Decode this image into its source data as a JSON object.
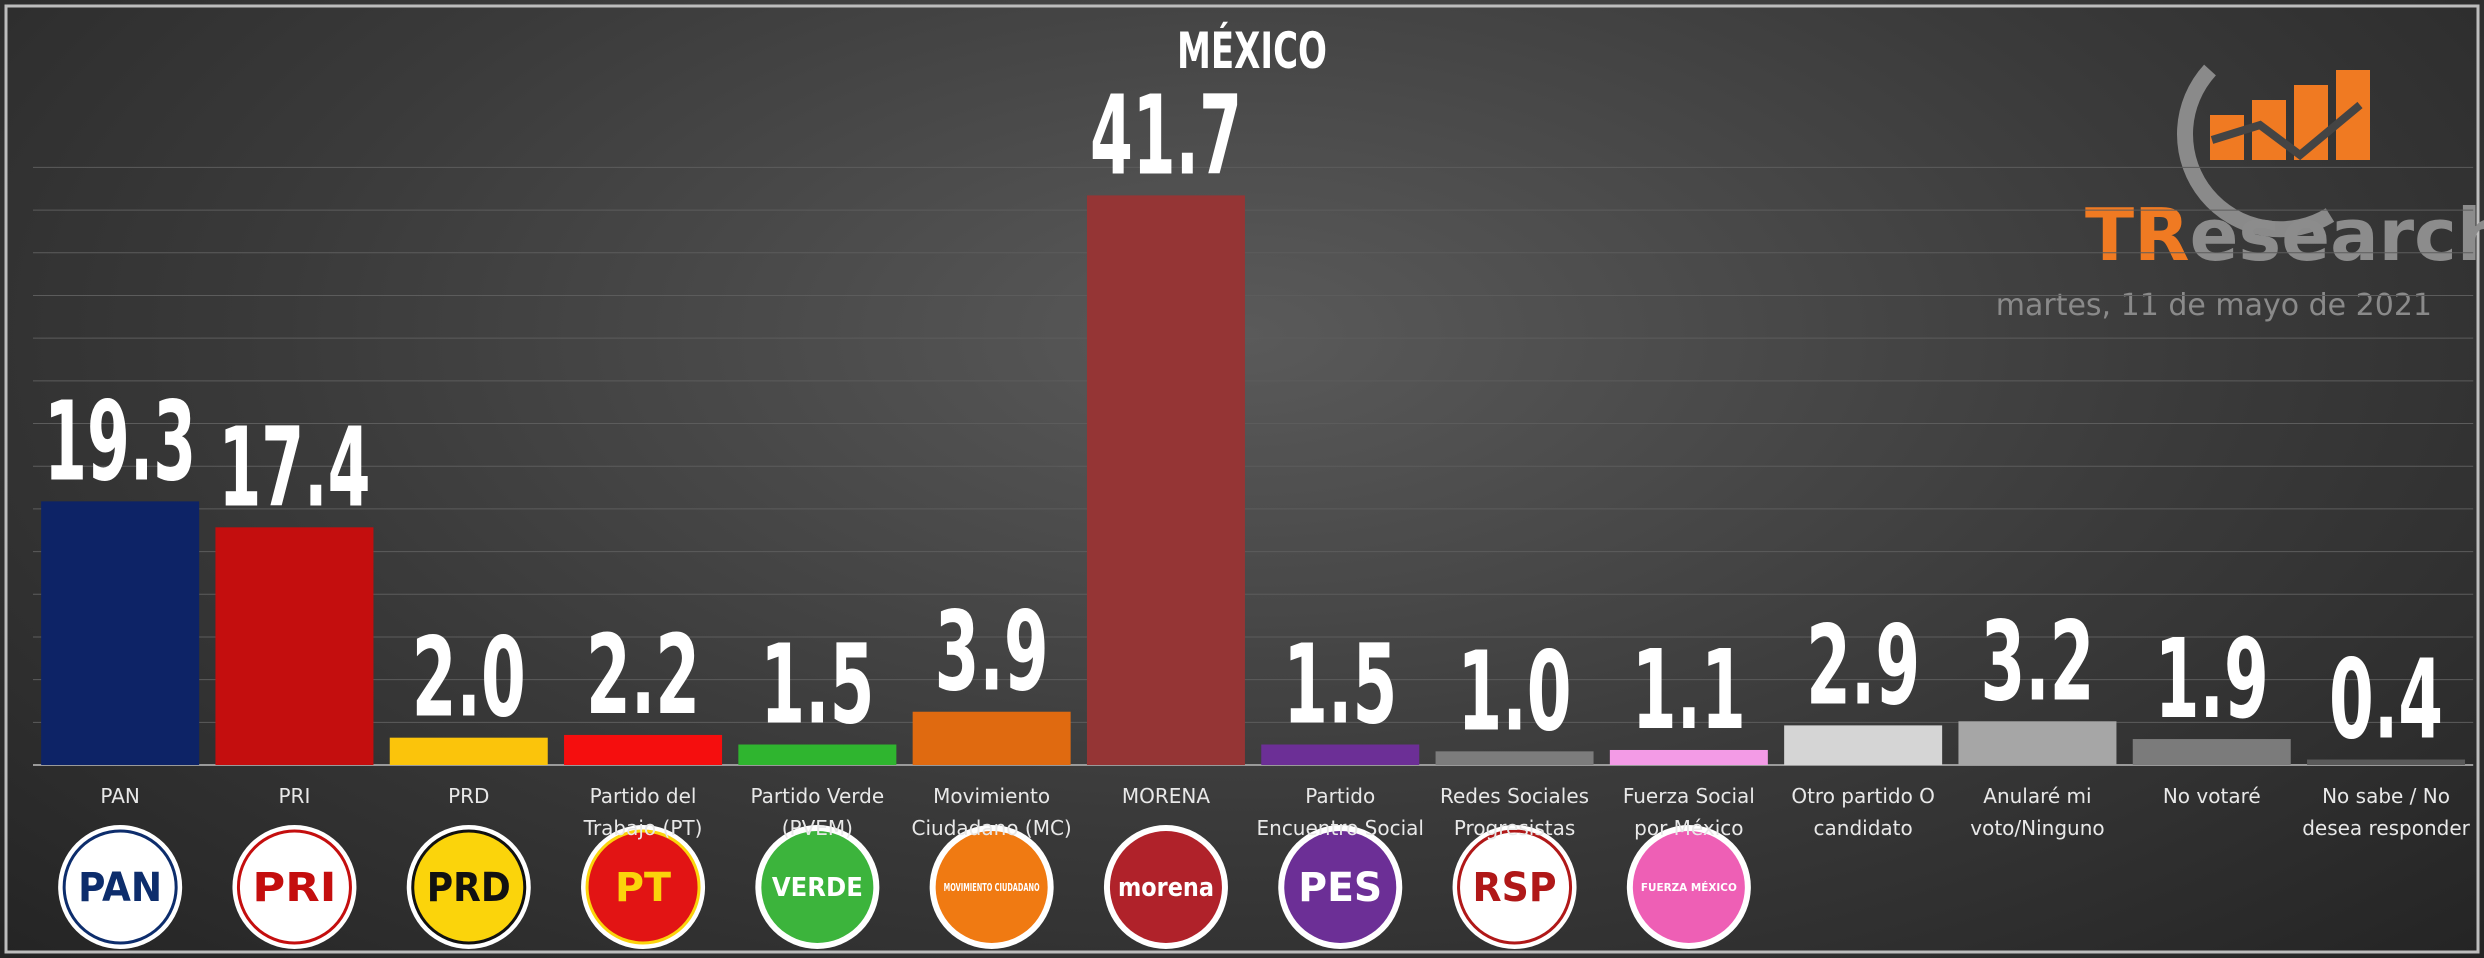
{
  "chart_data": {
    "type": "bar",
    "title": "MÉXICO",
    "categories": [
      "PAN",
      "PRI",
      "PRD",
      "Partido del Trabajo (PT)",
      "Partido Verde (PVEM)",
      "Movimiento Ciudadano (MC)",
      "MORENA",
      "Partido Encuentro Social",
      "Redes Sociales Progresistas",
      "Fuerza Social por México",
      "Otro partido O candidato",
      "Anularé mi voto/Ninguno",
      "No votaré",
      "No sabe / No desea responder"
    ],
    "values": [
      19.3,
      17.4,
      2.0,
      2.2,
      1.5,
      3.9,
      41.7,
      1.5,
      1.0,
      1.1,
      2.9,
      3.2,
      1.9,
      0.4
    ],
    "value_labels": [
      "19.3",
      "17.4",
      "2.0",
      "2.2",
      "1.5",
      "3.9",
      "41.7",
      "1.5",
      "1.0",
      "1.1",
      "2.9",
      "3.2",
      "1.9",
      "0.4"
    ],
    "colors": [
      "#0d2366",
      "#c40e0e",
      "#fbc40b",
      "#f50e0e",
      "#2fb52f",
      "#e06a10",
      "#953535",
      "#6c2f96",
      "#7c7c7c",
      "#f39be6",
      "#d5d5d5",
      "#a6a6a6",
      "#7b7b7b",
      "#5a5a5a"
    ],
    "ylim": [
      0,
      50
    ],
    "logos": [
      {
        "text": "PAN",
        "fill": "#ffffff",
        "ink": "#0d2d6c"
      },
      {
        "text": "PRI",
        "fill": "#ffffff",
        "ink": "#c40e0e"
      },
      {
        "text": "PRD",
        "fill": "#fbd40b",
        "ink": "#111111"
      },
      {
        "text": "PT",
        "fill": "#e21414",
        "ink": "#fbd40b"
      },
      {
        "text": "VERDE",
        "fill": "#3cb43c",
        "ink": "#ffffff"
      },
      {
        "text": "MOVIMIENTO CIUDADANO",
        "fill": "#f07a12",
        "ink": "#ffffff"
      },
      {
        "text": "morena",
        "fill": "#b0222a",
        "ink": "#ffffff"
      },
      {
        "text": "PES",
        "fill": "#6c2f96",
        "ink": "#ffffff"
      },
      {
        "text": "RSP",
        "fill": "#ffffff",
        "ink": "#b01818"
      },
      {
        "text": "FUERZA MÉXICO",
        "fill": "#ee5fb5",
        "ink": "#ffffff"
      }
    ],
    "brand": {
      "name_a": "TR",
      "name_b": "esearch",
      "date": "martes, 11 de mayo de 2021"
    }
  }
}
